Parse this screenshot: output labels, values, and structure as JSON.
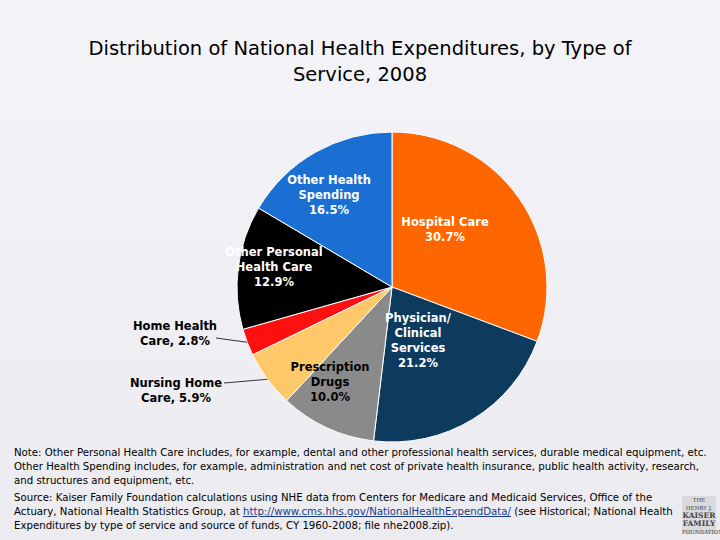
{
  "chart_data": {
    "type": "pie",
    "title": "Distribution of National Health Expenditures, by Type of Service, 2008",
    "categories": [
      "Hospital Care",
      "Physician/Clinical Services",
      "Prescription Drugs",
      "Nursing Home Care",
      "Home Health Care",
      "Other Personal Health Care",
      "Other Health Spending"
    ],
    "values": [
      30.7,
      21.2,
      10.0,
      5.9,
      2.8,
      12.9,
      16.5
    ],
    "value_labels": [
      "30.7%",
      "21.2%",
      "10.0%",
      "5.9%",
      "2.8%",
      "12.9%",
      "16.5%"
    ],
    "colors": [
      "#ff6600",
      "#0d3b5e",
      "#8a8a8a",
      "#ffc868",
      "#ff1010",
      "#000000",
      "#1b6fd3"
    ],
    "data_labels": true
  },
  "footer": {
    "note": "Note: Other Personal Health Care includes, for example, dental and other professional health services, durable medical equipment, etc. Other Health Spending includes, for example, administration and net cost of private health insurance, public health activity, research, and structures and equipment, etc.",
    "source_before": "Source: Kaiser Family Foundation calculations using NHE data from Centers for Medicare and Medicaid Services, Office of the Actuary, National Health Statistics Group, at ",
    "source_link": "http://www.cms.hhs.gov/NationalHealthExpendData/",
    "source_after": " (see Historical; National Health Expenditures by type of service and source of funds, CY 1960-2008; file nhe2008.zip).",
    "logo": [
      "THE HENRY J.",
      "KAISER",
      "FAMILY",
      "FOUNDATION"
    ]
  }
}
